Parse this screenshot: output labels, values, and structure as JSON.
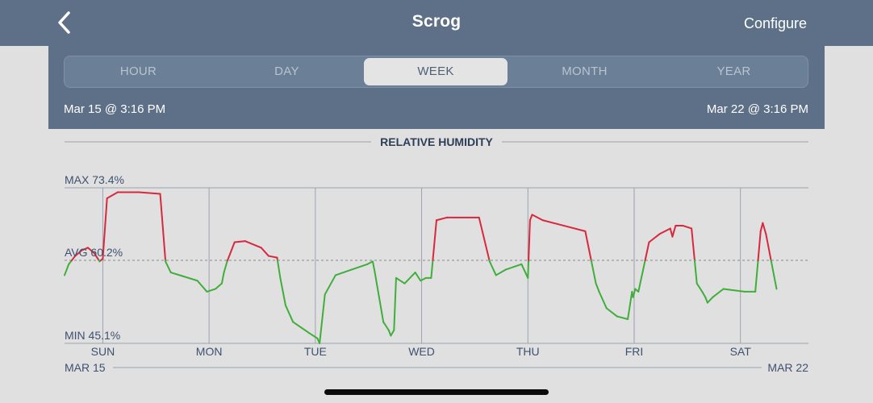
{
  "header": {
    "title": "Scrog",
    "configure_label": "Configure",
    "back_icon": "chevron-left-icon"
  },
  "range_tabs": [
    {
      "label": "HOUR",
      "active": false
    },
    {
      "label": "DAY",
      "active": false
    },
    {
      "label": "WEEK",
      "active": true
    },
    {
      "label": "MONTH",
      "active": false
    },
    {
      "label": "YEAR",
      "active": false
    }
  ],
  "range": {
    "start": "Mar 15 @ 3:16 PM",
    "end": "Mar 22 @ 3:16 PM"
  },
  "colors": {
    "header_bg": "#5d7088",
    "page_bg": "#e0e0e0",
    "above_avg_line": "#d8283d",
    "below_avg_line": "#3fae3a"
  },
  "chart_data": {
    "type": "line",
    "title": "RELATIVE HUMIDITY",
    "max_label": "MAX 73.4%",
    "avg_label": "AVG 60.2%",
    "min_label": "MIN 45.1%",
    "max": 73.4,
    "avg": 60.2,
    "min": 45.1,
    "ylim": [
      45.1,
      73.4
    ],
    "x_range_days": [
      0,
      7
    ],
    "day_labels": [
      "SUN",
      "MON",
      "TUE",
      "WED",
      "THU",
      "FRI",
      "SAT"
    ],
    "day_positions": [
      0.36,
      1.36,
      2.36,
      3.36,
      4.36,
      5.36,
      6.36
    ],
    "date_start_label": "MAR 15",
    "date_end_label": "MAR 22",
    "series": [
      {
        "x": [
          0.0,
          0.04,
          0.1,
          0.16,
          0.22,
          0.28,
          0.33,
          0.36,
          0.4,
          0.5,
          0.7,
          0.9,
          0.95,
          1.0,
          1.1,
          1.25,
          1.34,
          1.42,
          1.48,
          1.5,
          1.53,
          1.6,
          1.7,
          1.85,
          1.92,
          2.0,
          2.03,
          2.08,
          2.15,
          2.3,
          2.38,
          2.4,
          2.45,
          2.55,
          2.7,
          2.85,
          2.9,
          2.92,
          3.0,
          3.05,
          3.07,
          3.1,
          3.12,
          3.2,
          3.3,
          3.35,
          3.4,
          3.45,
          3.5,
          3.6,
          3.8,
          3.9,
          4.0,
          4.06,
          4.15,
          4.3,
          4.36,
          4.38,
          4.4,
          4.5,
          4.7,
          4.9,
          5.0,
          5.03,
          5.1,
          5.2,
          5.3,
          5.34,
          5.35,
          5.37,
          5.4,
          5.5,
          5.6,
          5.7,
          5.72,
          5.75,
          5.82,
          5.9,
          5.95,
          6.0,
          6.03,
          6.05,
          6.1,
          6.2,
          6.4,
          6.5,
          6.55,
          6.57,
          6.6,
          6.7
        ],
        "y": [
          57.5,
          59.5,
          61.0,
          62.0,
          62.5,
          61.5,
          60.0,
          60.5,
          71.5,
          72.6,
          72.6,
          72.3,
          60.0,
          58.0,
          57.4,
          56.5,
          54.5,
          55.0,
          56.0,
          58.0,
          60.0,
          63.5,
          63.7,
          62.5,
          61.0,
          60.7,
          57.0,
          52.0,
          49.0,
          47.0,
          46.0,
          45.1,
          54.0,
          57.5,
          58.5,
          59.5,
          60.0,
          58.0,
          49.0,
          47.5,
          46.5,
          47.5,
          57.0,
          56.0,
          58.0,
          56.5,
          57.0,
          57.0,
          67.5,
          68.0,
          68.0,
          68.0,
          60.0,
          57.5,
          58.5,
          59.5,
          57.0,
          67.5,
          68.5,
          67.5,
          66.5,
          65.5,
          56.0,
          54.5,
          51.5,
          50.0,
          49.5,
          54.5,
          53.5,
          55.0,
          54.5,
          63.5,
          65.0,
          66.0,
          64.5,
          66.5,
          66.5,
          66.0,
          56.0,
          54.5,
          53.5,
          52.5,
          53.5,
          55.0,
          54.5,
          54.5,
          65.5,
          67.0,
          65.0,
          55.0
        ]
      }
    ]
  }
}
